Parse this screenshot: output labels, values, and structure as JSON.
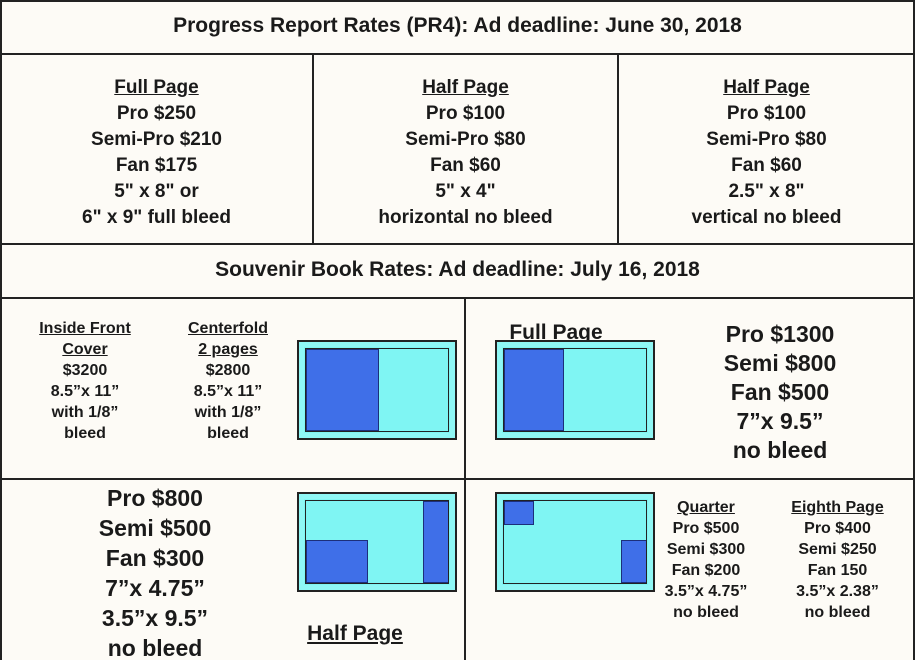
{
  "progress_report": {
    "title": "Progress Report Rates (PR4): Ad deadline: June 30, 2018",
    "columns": [
      {
        "title": [
          "Full Page"
        ],
        "lines": [
          "Pro $250",
          "Semi-Pro $210",
          "Fan $175",
          "5\" x 8\" or",
          "6\" x 9\" full bleed"
        ]
      },
      {
        "title": [
          "Half Page"
        ],
        "lines": [
          "Pro $100",
          "Semi-Pro $80",
          "Fan $60",
          "5\" x 4\"",
          "horizontal no bleed"
        ]
      },
      {
        "title": [
          "Half Page"
        ],
        "lines": [
          "Pro $100",
          "Semi-Pro $80",
          "Fan $60",
          "2.5\" x 8\"",
          "vertical no bleed"
        ]
      }
    ]
  },
  "souvenir_book": {
    "title": "Souvenir Book Rates: Ad deadline: July 16, 2018",
    "inside_front_cover": {
      "title": [
        "Inside Front",
        "Cover"
      ],
      "lines": [
        "$3200",
        "8.5”x 11”",
        "with 1/8”",
        "bleed"
      ]
    },
    "centerfold": {
      "title": [
        "Centerfold",
        "2 pages"
      ],
      "lines": [
        "$2800",
        "8.5”x 11”",
        "with 1/8”",
        "bleed"
      ]
    },
    "full_page": {
      "title": [
        "Full Page"
      ],
      "lines": [
        "Pro $1300",
        "Semi $800",
        "Fan $500",
        "7”x 9.5”",
        "no bleed"
      ]
    },
    "half_page": {
      "title": [
        "Half Page"
      ],
      "lines": [
        "Pro $800",
        "Semi $500",
        "Fan $300",
        "7”x 4.75”",
        "3.5”x 9.5”",
        "no bleed"
      ]
    },
    "quarter_page": {
      "title": [
        "Quarter"
      ],
      "lines": [
        "Pro $500",
        "Semi $300",
        "Fan $200",
        "3.5”x 4.75”",
        "no bleed"
      ]
    },
    "eighth_page": {
      "title": [
        "Eighth Page"
      ],
      "lines": [
        "Pro $400",
        "Semi $250",
        "Fan 150",
        "3.5”x 2.38”",
        "no bleed"
      ]
    }
  }
}
